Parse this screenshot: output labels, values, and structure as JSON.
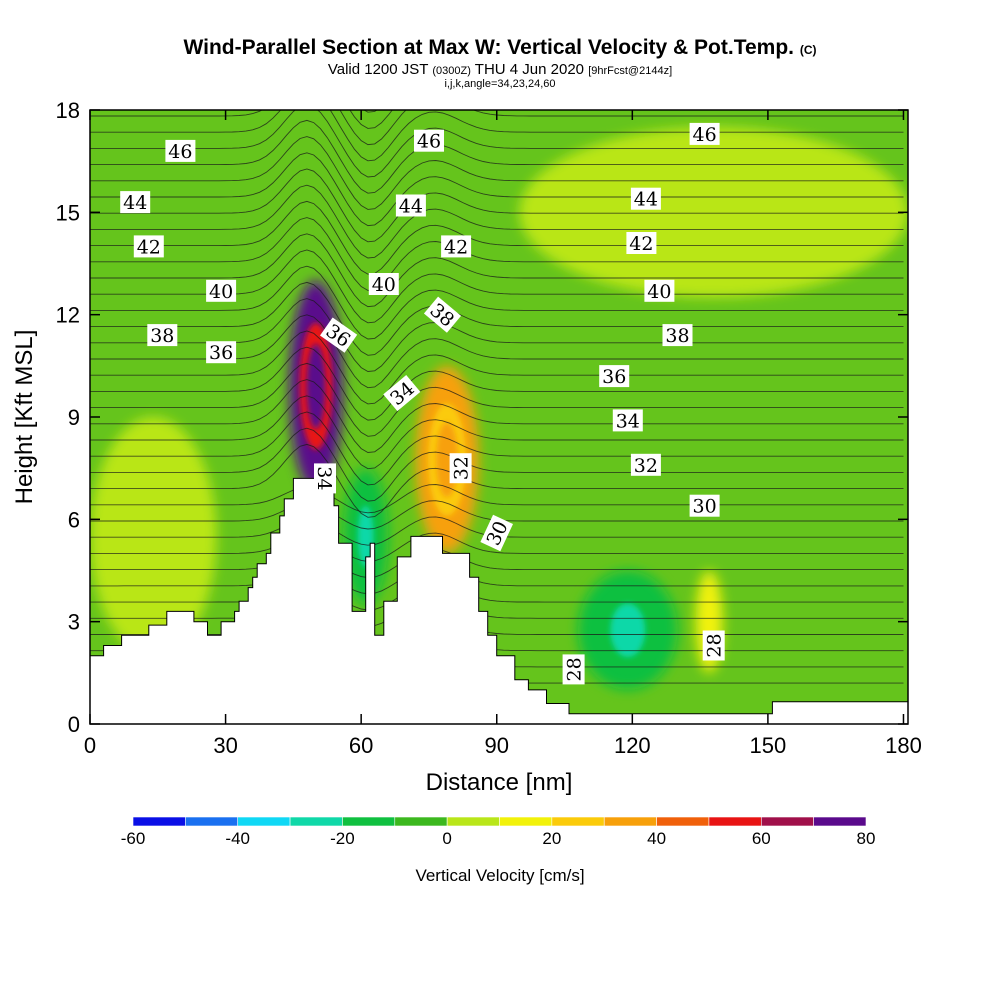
{
  "title": {
    "main": "Wind-Parallel Section at Max W: Vertical Velocity & Pot.Temp.",
    "main_mark": "(C)",
    "valid_prefix": "Valid 1200 JST",
    "valid_utc": "(0300Z)",
    "valid_date": "THU 4 Jun 2020",
    "forecast": "[9hrFcst@2144z]",
    "indices": "i,j,k,angle=34,23,24,60"
  },
  "chart_data": {
    "type": "heatmap",
    "xlabel": "Distance [nm]",
    "ylabel": "Height [Kft MSL]",
    "xlim": [
      0,
      181
    ],
    "ylim": [
      0,
      18
    ],
    "x_ticks": [
      0,
      30,
      60,
      90,
      120,
      150,
      180
    ],
    "x_tick_labels": [
      "0",
      "30",
      "60",
      "90",
      "120",
      "150",
      "180"
    ],
    "y_ticks": [
      0,
      3,
      6,
      9,
      12,
      15,
      18
    ],
    "y_tick_labels": [
      "0",
      "3",
      "6",
      "9",
      "12",
      "15",
      "18"
    ],
    "colorbar": {
      "title": "Vertical Velocity [cm/s]",
      "bounds": [
        -60,
        -50,
        -40,
        -30,
        -20,
        -10,
        0,
        10,
        20,
        30,
        40,
        50,
        60,
        70,
        80
      ],
      "labels": [
        "-60",
        "-40",
        "-20",
        "0",
        "20",
        "40",
        "60",
        "80"
      ],
      "label_values": [
        -60,
        -40,
        -20,
        0,
        20,
        40,
        60,
        80
      ],
      "colors": [
        "#0a0fe6",
        "#1a70f0",
        "#10d8f5",
        "#10d8a8",
        "#10c040",
        "#3cb81e",
        "#b9e619",
        "#f2f20a",
        "#fbcb0a",
        "#f7a00a",
        "#f0600a",
        "#e81414",
        "#a0104a",
        "#5a0a8c"
      ]
    },
    "background_color": "#65c41c",
    "fields": [
      {
        "name": "upper-yellow-band",
        "x": [
          95,
          181
        ],
        "y": [
          12.5,
          17.5
        ],
        "w": 0
      },
      {
        "name": "left-lower-yellow",
        "x": [
          0,
          28
        ],
        "y": [
          2,
          9
        ],
        "w": 3
      },
      {
        "name": "updraft-core-west",
        "x": [
          44,
          56
        ],
        "y": [
          6.8,
          13
        ],
        "w": 72
      },
      {
        "name": "updraft-core-east",
        "x": [
          72,
          86
        ],
        "y": [
          5,
          10.5
        ],
        "w": 38
      },
      {
        "name": "downdraft-ridge-gap",
        "x": [
          56,
          66
        ],
        "y": [
          3.5,
          7.5
        ],
        "w": -20
      },
      {
        "name": "valley-downdraft",
        "x": [
          108,
          130
        ],
        "y": [
          1,
          4.5
        ],
        "w": -20
      },
      {
        "name": "lee-updraft",
        "x": [
          134,
          140
        ],
        "y": [
          1.5,
          4.5
        ],
        "w": 14
      }
    ],
    "theta_contours": [
      {
        "value": 28,
        "label": "28"
      },
      {
        "value": 30,
        "label": "30"
      },
      {
        "value": 32,
        "label": "32"
      },
      {
        "value": 34,
        "label": "34"
      },
      {
        "value": 36,
        "label": "36"
      },
      {
        "value": 38,
        "label": "38"
      },
      {
        "value": 40,
        "label": "40"
      },
      {
        "value": 42,
        "label": "42"
      },
      {
        "value": 44,
        "label": "44"
      },
      {
        "value": 46,
        "label": "46"
      }
    ],
    "contour_labels": [
      {
        "text": "46",
        "x": 20,
        "y": 16.8,
        "angle": 0
      },
      {
        "text": "46",
        "x": 75,
        "y": 17.1,
        "angle": 0
      },
      {
        "text": "46",
        "x": 136,
        "y": 17.3,
        "angle": 0
      },
      {
        "text": "44",
        "x": 10,
        "y": 15.3,
        "angle": 0
      },
      {
        "text": "44",
        "x": 71,
        "y": 15.2,
        "angle": 0
      },
      {
        "text": "44",
        "x": 123,
        "y": 15.4,
        "angle": 0
      },
      {
        "text": "42",
        "x": 13,
        "y": 14.0,
        "angle": 0
      },
      {
        "text": "42",
        "x": 81,
        "y": 14.0,
        "angle": 0
      },
      {
        "text": "42",
        "x": 122,
        "y": 14.1,
        "angle": 0
      },
      {
        "text": "40",
        "x": 29,
        "y": 12.7,
        "angle": 0
      },
      {
        "text": "40",
        "x": 65,
        "y": 12.9,
        "angle": 0
      },
      {
        "text": "40",
        "x": 126,
        "y": 12.7,
        "angle": 0
      },
      {
        "text": "38",
        "x": 16,
        "y": 11.4,
        "angle": 0
      },
      {
        "text": "38",
        "x": 78,
        "y": 12.0,
        "angle": 40
      },
      {
        "text": "38",
        "x": 130,
        "y": 11.4,
        "angle": 0
      },
      {
        "text": "36",
        "x": 29,
        "y": 10.9,
        "angle": 0
      },
      {
        "text": "36",
        "x": 55,
        "y": 11.4,
        "angle": 35
      },
      {
        "text": "36",
        "x": 116,
        "y": 10.2,
        "angle": 0
      },
      {
        "text": "34",
        "x": 69,
        "y": 9.7,
        "angle": -40
      },
      {
        "text": "34",
        "x": 52,
        "y": 7.2,
        "angle": 90
      },
      {
        "text": "34",
        "x": 119,
        "y": 8.9,
        "angle": 0
      },
      {
        "text": "32",
        "x": 82,
        "y": 7.5,
        "angle": -90
      },
      {
        "text": "32",
        "x": 123,
        "y": 7.6,
        "angle": 0
      },
      {
        "text": "30",
        "x": 90,
        "y": 5.6,
        "angle": -65
      },
      {
        "text": "30",
        "x": 136,
        "y": 6.4,
        "angle": 0
      },
      {
        "text": "28",
        "x": 107,
        "y": 1.6,
        "angle": -90
      },
      {
        "text": "28",
        "x": 138,
        "y": 2.3,
        "angle": -90
      }
    ],
    "terrain": [
      [
        0,
        2.0
      ],
      [
        3,
        2.0
      ],
      [
        3,
        2.3
      ],
      [
        7,
        2.3
      ],
      [
        7,
        2.6
      ],
      [
        13,
        2.6
      ],
      [
        13,
        2.9
      ],
      [
        17,
        2.9
      ],
      [
        17,
        3.3
      ],
      [
        23,
        3.3
      ],
      [
        23,
        3.0
      ],
      [
        26,
        3.0
      ],
      [
        26,
        2.6
      ],
      [
        29,
        2.6
      ],
      [
        29,
        3.0
      ],
      [
        32,
        3.0
      ],
      [
        32,
        3.3
      ],
      [
        33,
        3.3
      ],
      [
        33,
        3.6
      ],
      [
        35,
        3.6
      ],
      [
        35,
        4.0
      ],
      [
        36,
        4.0
      ],
      [
        36,
        4.3
      ],
      [
        37,
        4.3
      ],
      [
        37,
        4.7
      ],
      [
        39,
        4.7
      ],
      [
        39,
        5.0
      ],
      [
        40,
        5.0
      ],
      [
        40,
        5.6
      ],
      [
        42,
        5.6
      ],
      [
        42,
        6.1
      ],
      [
        43,
        6.1
      ],
      [
        43,
        6.6
      ],
      [
        45,
        6.6
      ],
      [
        45,
        7.2
      ],
      [
        54,
        7.2
      ],
      [
        54,
        6.4
      ],
      [
        55,
        6.4
      ],
      [
        55,
        5.3
      ],
      [
        58,
        5.3
      ],
      [
        58,
        3.3
      ],
      [
        61,
        3.3
      ],
      [
        61,
        4.9
      ],
      [
        62,
        4.9
      ],
      [
        62,
        5.3
      ],
      [
        63,
        5.3
      ],
      [
        63,
        2.6
      ],
      [
        65,
        2.6
      ],
      [
        65,
        3.6
      ],
      [
        68,
        3.6
      ],
      [
        68,
        4.9
      ],
      [
        71,
        4.9
      ],
      [
        71,
        5.5
      ],
      [
        78,
        5.5
      ],
      [
        78,
        5.0
      ],
      [
        84,
        5.0
      ],
      [
        84,
        4.3
      ],
      [
        86,
        4.3
      ],
      [
        86,
        3.3
      ],
      [
        88,
        3.3
      ],
      [
        88,
        2.6
      ],
      [
        90,
        2.6
      ],
      [
        90,
        2.0
      ],
      [
        94,
        2.0
      ],
      [
        94,
        1.3
      ],
      [
        97,
        1.3
      ],
      [
        97,
        1.0
      ],
      [
        101,
        1.0
      ],
      [
        101,
        0.6
      ],
      [
        106,
        0.6
      ],
      [
        106,
        0.3
      ],
      [
        109,
        0.3
      ],
      [
        109,
        0.3
      ],
      [
        140,
        0.3
      ],
      [
        140,
        0.3
      ],
      [
        151,
        0.3
      ],
      [
        151,
        0.65
      ],
      [
        181,
        0.65
      ],
      [
        181,
        0
      ]
    ]
  }
}
